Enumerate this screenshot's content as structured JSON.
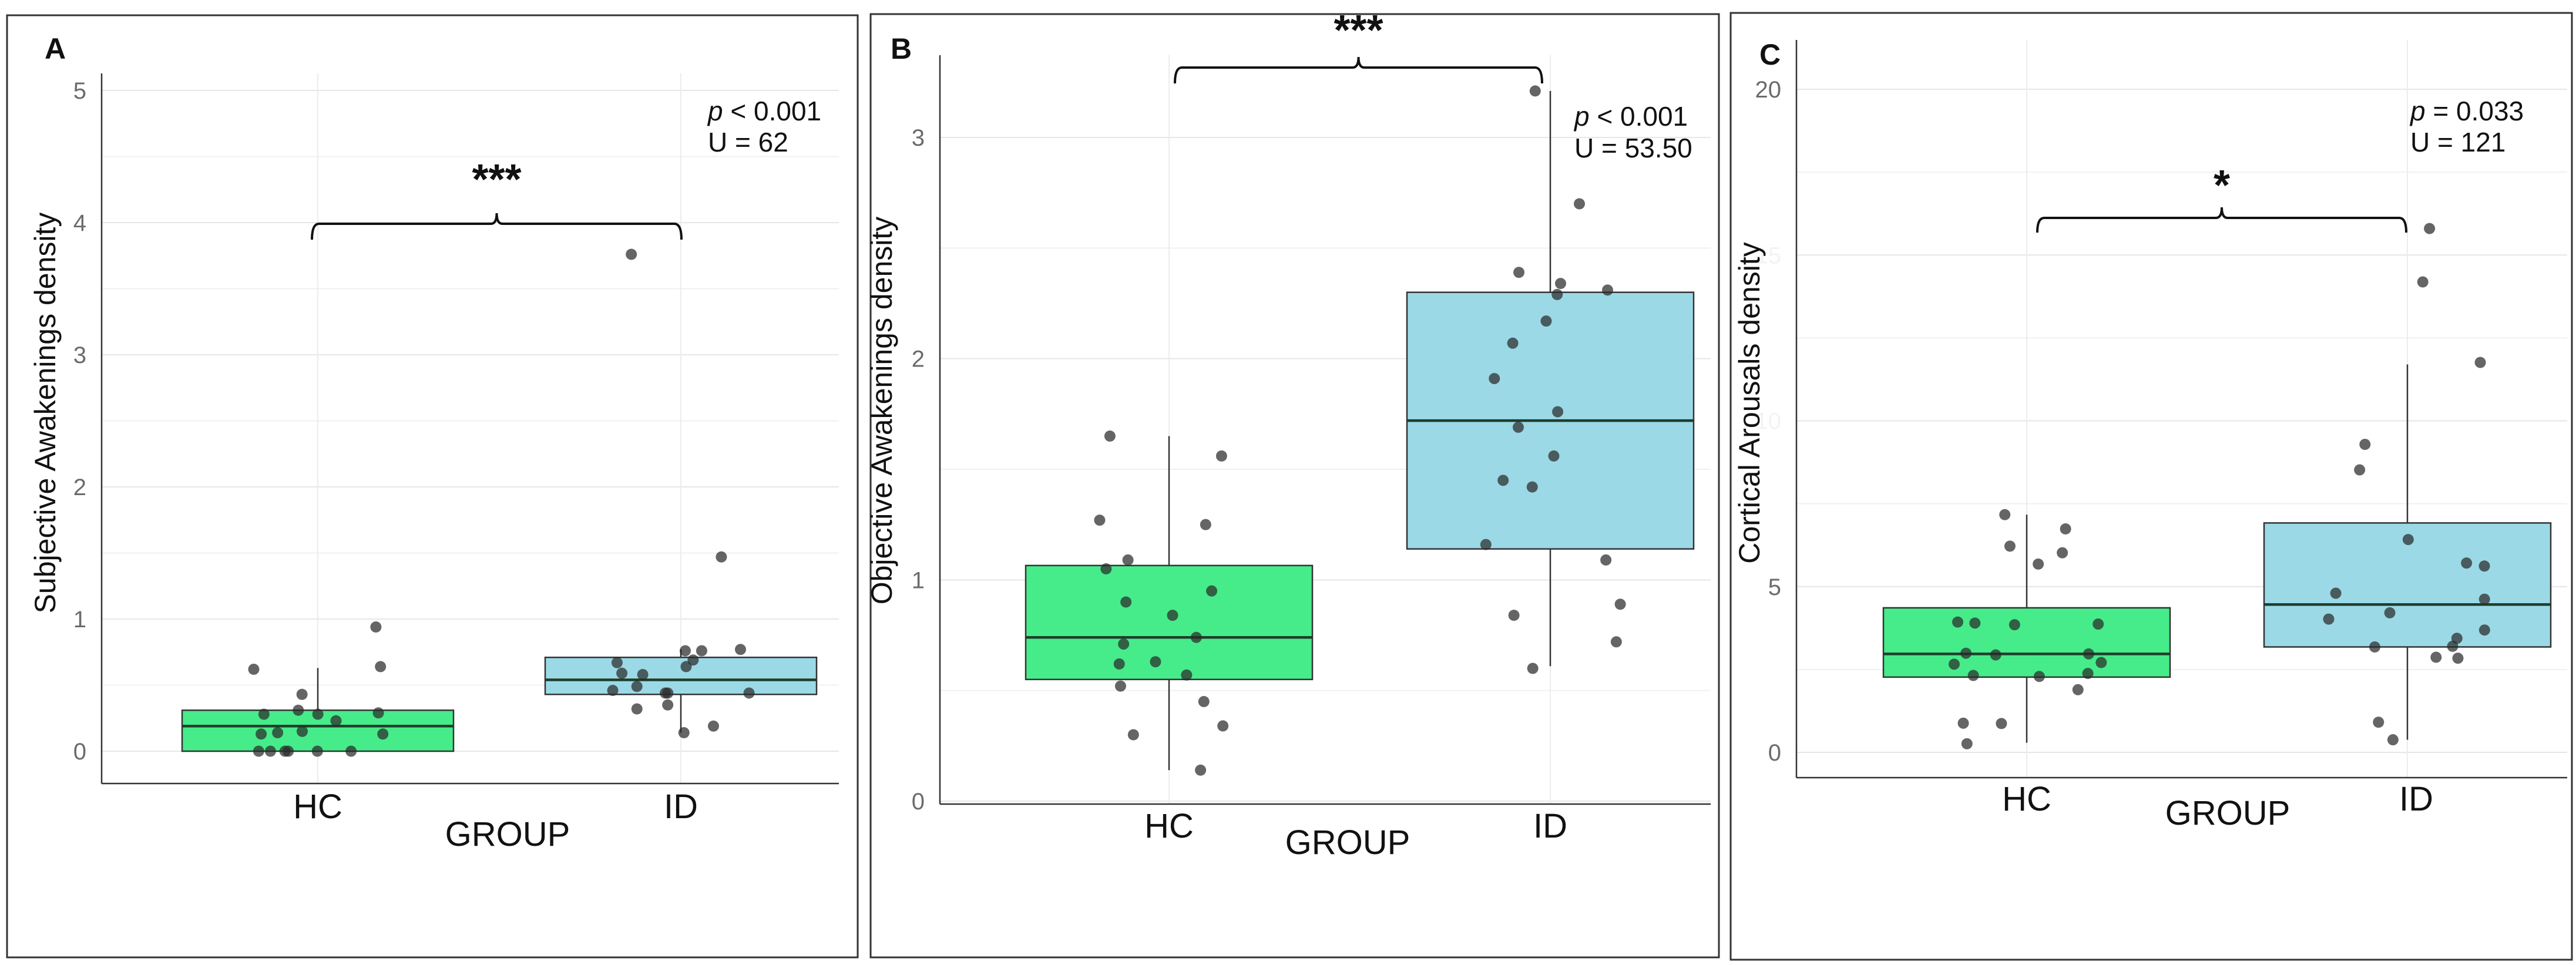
{
  "chart_data": [
    {
      "type": "box",
      "panel_label": "A",
      "xlabel": "GROUP",
      "ylabel": "Subjective Awakenings density",
      "categories": [
        "HC",
        "ID"
      ],
      "ylim": [
        -0.24,
        5.1
      ],
      "yticks": [
        0,
        1,
        2,
        3,
        4,
        5
      ],
      "ytick_labels": [
        "0",
        "1",
        "2",
        "3",
        "4",
        "5"
      ],
      "grid_minor_step": 0.5,
      "annotation": {
        "p_symbol": "p",
        "p_text": " < 0.001",
        "u_text": "U = 62",
        "stars": "***"
      },
      "series": [
        {
          "name": "HC",
          "color": "#46EC8A",
          "box": {
            "whisker_low": 0,
            "q1": 0,
            "median": 0.19,
            "q3": 0.31,
            "whisker_high": 0.63
          },
          "points": [
            0.94,
            0.64,
            0.62,
            0.43,
            0.29,
            0.28,
            0.31,
            0.28,
            0.23,
            0.14,
            0.13,
            0.13,
            0.15,
            0,
            0,
            0,
            0,
            0,
            0
          ]
        },
        {
          "name": "ID",
          "color": "#9BD9E6",
          "box": {
            "whisker_low": 0.14,
            "q1": 0.43,
            "median": 0.54,
            "q3": 0.71,
            "whisker_high": 0.77
          },
          "points": [
            3.76,
            1.47,
            0.76,
            0.77,
            0.76,
            0.69,
            0.67,
            0.64,
            0.58,
            0.59,
            0.49,
            0.46,
            0.44,
            0.44,
            0.44,
            0.35,
            0.32,
            0.19,
            0.14
          ]
        }
      ]
    },
    {
      "type": "box",
      "panel_label": "B",
      "xlabel": "GROUP",
      "ylabel": "Objective Awakenings density",
      "categories": [
        "HC",
        "ID"
      ],
      "ylim": [
        -0.01,
        3.4
      ],
      "yticks": [
        0,
        1,
        2,
        3
      ],
      "ytick_labels": [
        "0",
        "1",
        "2",
        "3"
      ],
      "grid_minor_step": 0.5,
      "annotation": {
        "p_symbol": "p",
        "p_text": " < 0.001",
        "u_text": "U = 53.50",
        "stars": "***"
      },
      "series": [
        {
          "name": "HC",
          "color": "#46EC8A",
          "box": {
            "whisker_low": 0.14,
            "q1": 0.55,
            "median": 0.74,
            "q3": 1.065,
            "whisker_high": 1.65
          },
          "points": [
            1.65,
            1.56,
            1.25,
            1.27,
            1.09,
            1.05,
            0.95,
            0.9,
            0.84,
            0.74,
            0.71,
            0.63,
            0.62,
            0.57,
            0.52,
            0.45,
            0.34,
            0.3,
            0.14
          ]
        },
        {
          "name": "ID",
          "color": "#9BD9E6",
          "box": {
            "whisker_low": 0.61,
            "q1": 1.14,
            "median": 1.72,
            "q3": 2.3,
            "whisker_high": 3.21
          },
          "points": [
            3.21,
            2.7,
            2.39,
            2.34,
            2.31,
            2.29,
            2.17,
            2.07,
            1.91,
            1.76,
            1.69,
            1.56,
            1.45,
            1.42,
            1.16,
            1.09,
            0.89,
            0.84,
            0.72,
            0.6
          ]
        }
      ]
    },
    {
      "type": "box",
      "panel_label": "C",
      "xlabel": "GROUP",
      "ylabel": "Cortical Arousals density",
      "categories": [
        "HC",
        "ID"
      ],
      "ylim": [
        -0.7,
        22.2
      ],
      "yticks": [
        0,
        5,
        10,
        15,
        20
      ],
      "ytick_labels": [
        "0",
        "5",
        "10",
        "15",
        "20"
      ],
      "grid_minor_step": 2.5,
      "annotation": {
        "p_symbol": "p",
        "p_text": " = 0.033",
        "u_text": "U = 121",
        "stars": "*"
      },
      "series": [
        {
          "name": "HC",
          "color": "#46EC8A",
          "box": {
            "whisker_low": 0.29,
            "q1": 2.27,
            "median": 2.97,
            "q3": 4.36,
            "whisker_high": 7.17
          },
          "points": [
            7.17,
            6.74,
            6.22,
            6.02,
            5.68,
            3.93,
            3.9,
            3.87,
            3.85,
            2.99,
            2.94,
            2.97,
            2.71,
            2.66,
            2.38,
            2.32,
            2.29,
            1.89,
            0.88,
            0.87,
            0.26
          ]
        },
        {
          "name": "ID",
          "color": "#9BD9E6",
          "box": {
            "whisker_low": 0.38,
            "q1": 3.18,
            "median": 4.46,
            "q3": 6.92,
            "whisker_high": 11.7
          },
          "points": [
            15.8,
            14.19,
            11.76,
            9.29,
            8.52,
            6.42,
            5.71,
            5.62,
            4.8,
            4.62,
            4.21,
            4.02,
            3.69,
            3.44,
            3.2,
            3.18,
            2.87,
            2.84,
            0.91,
            0.38
          ]
        }
      ]
    }
  ]
}
